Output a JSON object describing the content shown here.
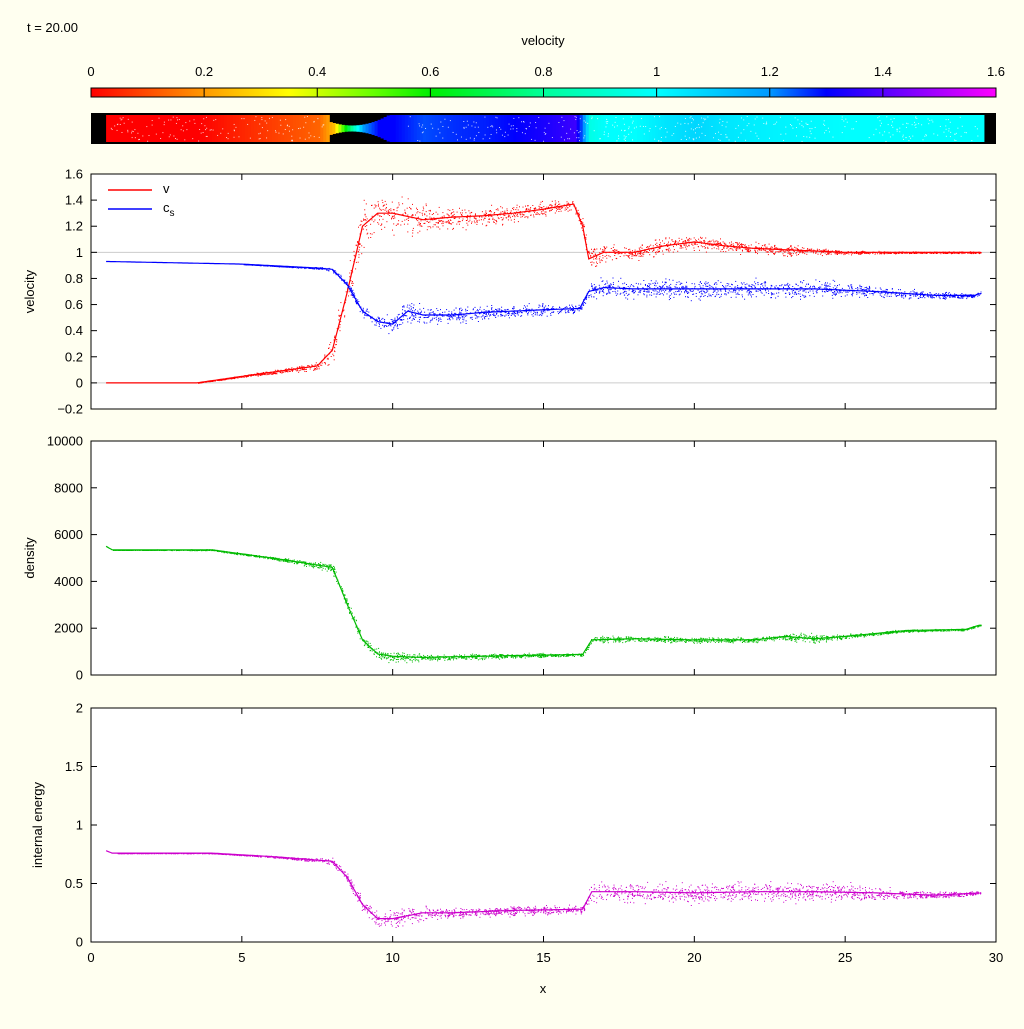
{
  "chart_data": {
    "type": "scatter",
    "time_label": "t = 20.00",
    "colorbar": {
      "title": "velocity",
      "range": [
        0,
        1.6
      ],
      "ticks": [
        "0",
        "0.2",
        "0.4",
        "0.6",
        "0.8",
        "1",
        "1.2",
        "1.4",
        "1.6"
      ],
      "palette": [
        [
          0,
          "#ff0000"
        ],
        [
          0.2,
          "#ff9900"
        ],
        [
          0.35,
          "#ffff00"
        ],
        [
          0.5,
          "#66ff00"
        ],
        [
          0.6,
          "#00ee00"
        ],
        [
          0.8,
          "#00ff99"
        ],
        [
          1.0,
          "#00ffff"
        ],
        [
          1.2,
          "#0099ff"
        ],
        [
          1.3,
          "#0000ff"
        ],
        [
          1.6,
          "#ff00ff"
        ]
      ]
    },
    "xlabel": "x",
    "xlim": [
      0,
      30
    ],
    "xticks": [
      "0",
      "5",
      "10",
      "15",
      "20",
      "25",
      "30"
    ],
    "panels": [
      {
        "ylabel": "velocity",
        "ylim": [
          -0.2,
          1.6
        ],
        "yticks": [
          "-0.2",
          "0",
          "0.2",
          "0.4",
          "0.6",
          "0.8",
          "1",
          "1.2",
          "1.4",
          "1.6"
        ],
        "gridlines": [
          0,
          1
        ],
        "legend": {
          "position": "top-left",
          "entries": [
            {
              "label": "v",
              "color": "#ff0000"
            },
            {
              "label": "c",
              "sub": "s",
              "color": "#0000ff"
            }
          ]
        },
        "series": [
          {
            "name": "v",
            "color": "#ff0000",
            "x": [
              0.5,
              3.5,
              5,
              7.5,
              8,
              8.5,
              9,
              9.5,
              10,
              11,
              12,
              13,
              14,
              15,
              16,
              16.3,
              16.5,
              17,
              18,
              19,
              20,
              21,
              22,
              23,
              24,
              25,
              27,
              29.5
            ],
            "y": [
              0,
              0,
              0.05,
              0.13,
              0.25,
              0.7,
              1.2,
              1.3,
              1.3,
              1.25,
              1.27,
              1.28,
              1.3,
              1.33,
              1.37,
              1.2,
              0.95,
              1.0,
              1.0,
              1.05,
              1.08,
              1.05,
              1.03,
              1.02,
              1.01,
              1.0,
              1.0,
              1.0
            ],
            "spread": [
              0,
              0,
              0.005,
              0.02,
              0.08,
              0.1,
              0.12,
              0.1,
              0.1,
              0.08,
              0.06,
              0.05,
              0.05,
              0.04,
              0.03,
              0.05,
              0.05,
              0.05,
              0.04,
              0.04,
              0.04,
              0.03,
              0.03,
              0.03,
              0.02,
              0.01,
              0.005,
              0.005
            ]
          },
          {
            "name": "c_s",
            "color": "#0000ff",
            "x": [
              0.5,
              5,
              7.5,
              8,
              8.5,
              9,
              9.5,
              10,
              10.5,
              11,
              12,
              13,
              14,
              15,
              16.2,
              16.5,
              17,
              18,
              20,
              22,
              24,
              26,
              28,
              29.3,
              29.5
            ],
            "y": [
              0.93,
              0.91,
              0.88,
              0.87,
              0.75,
              0.55,
              0.47,
              0.45,
              0.55,
              0.52,
              0.52,
              0.54,
              0.55,
              0.56,
              0.57,
              0.7,
              0.73,
              0.72,
              0.72,
              0.72,
              0.72,
              0.7,
              0.67,
              0.67,
              0.69
            ],
            "spread": [
              0,
              0,
              0.005,
              0.01,
              0.02,
              0.03,
              0.04,
              0.04,
              0.06,
              0.05,
              0.04,
              0.04,
              0.03,
              0.03,
              0.02,
              0.04,
              0.05,
              0.05,
              0.05,
              0.05,
              0.05,
              0.03,
              0.02,
              0.01,
              0.01
            ]
          }
        ]
      },
      {
        "ylabel": "density",
        "ylim": [
          0,
          10000
        ],
        "yticks": [
          "0",
          "2000",
          "4000",
          "6000",
          "8000",
          "10000"
        ],
        "series": [
          {
            "name": "density",
            "color": "#00bb00",
            "x": [
              0.5,
              0.7,
              4,
              6,
              7.5,
              8,
              8.5,
              9,
              9.5,
              10,
              11,
              12,
              13,
              14,
              15,
              16.3,
              16.6,
              18,
              20,
              22,
              23,
              24,
              25,
              27,
              29,
              29.5
            ],
            "y": [
              5500,
              5350,
              5350,
              5000,
              4700,
              4600,
              3000,
              1500,
              900,
              800,
              750,
              780,
              800,
              830,
              850,
              880,
              1500,
              1550,
              1500,
              1500,
              1650,
              1550,
              1650,
              1900,
              1950,
              2150
            ],
            "spread": [
              0,
              0,
              20,
              40,
              100,
              150,
              200,
              150,
              150,
              150,
              100,
              80,
              80,
              60,
              60,
              50,
              100,
              100,
              80,
              80,
              100,
              150,
              60,
              40,
              30,
              30
            ]
          }
        ]
      },
      {
        "ylabel": "internal energy",
        "ylim": [
          0,
          2
        ],
        "yticks": [
          "0",
          "0.5",
          "1",
          "1.5",
          "2"
        ],
        "series": [
          {
            "name": "internal energy",
            "color": "#cc00cc",
            "x": [
              0.5,
              0.7,
              4,
              6,
              7.5,
              8,
              8.5,
              9,
              9.5,
              10,
              11,
              12,
              14,
              16.3,
              16.6,
              18,
              20,
              22,
              24,
              26,
              28,
              29.5
            ],
            "y": [
              0.78,
              0.76,
              0.76,
              0.73,
              0.7,
              0.69,
              0.55,
              0.32,
              0.2,
              0.2,
              0.25,
              0.25,
              0.27,
              0.28,
              0.43,
              0.43,
              0.42,
              0.43,
              0.43,
              0.42,
              0.4,
              0.42
            ],
            "spread": [
              0,
              0,
              0.002,
              0.005,
              0.01,
              0.02,
              0.03,
              0.04,
              0.05,
              0.05,
              0.04,
              0.03,
              0.03,
              0.03,
              0.06,
              0.06,
              0.06,
              0.06,
              0.06,
              0.04,
              0.02,
              0.01
            ]
          }
        ]
      }
    ]
  }
}
